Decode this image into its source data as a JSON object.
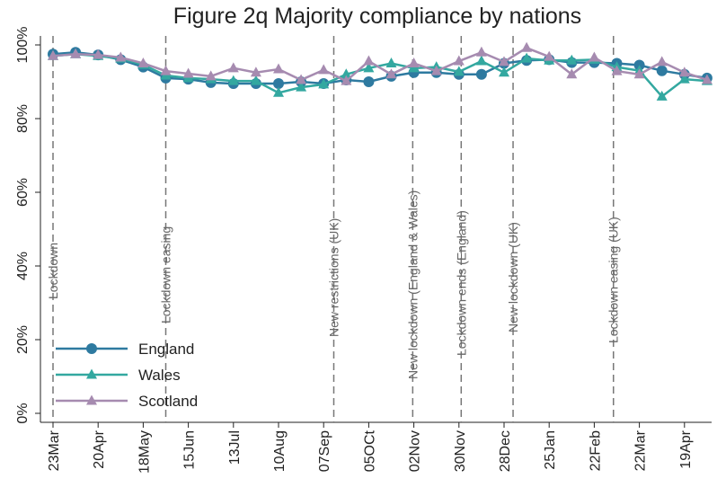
{
  "chart_data": {
    "type": "line",
    "title": "Figure 2q Majority compliance by nations",
    "categories": [
      "23Mar",
      null,
      "20Apr",
      null,
      "18May",
      null,
      "15Jun",
      null,
      "13Jul",
      null,
      "10Aug",
      null,
      "07Sep",
      null,
      "05OCt",
      null,
      "02Nov",
      null,
      "30Nov",
      null,
      "28Dec",
      null,
      "25Jan",
      null,
      "22Feb",
      null,
      "22Mar",
      null,
      "19Apr",
      null
    ],
    "series": [
      {
        "name": "England",
        "color": "#2e7aa0",
        "marker": "circle",
        "values": [
          97.5,
          98,
          97.3,
          96,
          94,
          91,
          90.7,
          89.8,
          89.5,
          89.5,
          89.5,
          90,
          89.5,
          90.5,
          90,
          91.5,
          92.5,
          92.5,
          92,
          92,
          95,
          95.8,
          96,
          95.2,
          95.2,
          95,
          94.5,
          93,
          92,
          91
        ]
      },
      {
        "name": "Wales",
        "color": "#33a8a0",
        "marker": "triangle",
        "values": [
          97,
          97.5,
          97,
          96.3,
          94.6,
          91.7,
          91,
          90.7,
          90.2,
          90.2,
          87,
          88.5,
          89.3,
          92,
          93.7,
          95,
          93.7,
          94,
          92.7,
          95.6,
          92.5,
          96.3,
          95.8,
          95.8,
          96,
          94,
          93,
          86,
          90.7,
          90.2
        ]
      },
      {
        "name": "Scotland",
        "color": "#a68bb0",
        "marker": "triangle",
        "values": [
          97,
          97.5,
          97.3,
          96.6,
          95,
          92.9,
          92.2,
          91.5,
          93.7,
          92.5,
          93.4,
          90.5,
          93.2,
          90.2,
          95.6,
          92,
          95,
          92.9,
          95.6,
          98,
          95.4,
          99.2,
          96.8,
          92,
          96.6,
          92.9,
          92,
          95.4,
          92.5,
          90.5
        ]
      }
    ],
    "ylim": [
      0,
      104
    ],
    "yticks": [
      {
        "value": 0,
        "label": "0%"
      },
      {
        "value": 20,
        "label": "20%"
      },
      {
        "value": 40,
        "label": "40%"
      },
      {
        "value": 60,
        "label": "60%"
      },
      {
        "value": 80,
        "label": "80%"
      },
      {
        "value": 100,
        "label": "100%"
      }
    ],
    "events": [
      {
        "label": "Lockdown",
        "x": 0
      },
      {
        "label": "Lockdown easing",
        "x": 5
      },
      {
        "label": "New restrictions (UK)",
        "x": 12.45
      },
      {
        "label": "New lockdown (England & Wales)",
        "x": 15.95
      },
      {
        "label": "Lockdown ends (England)",
        "x": 18.1
      },
      {
        "label": "New lockdown (UK)",
        "x": 20.4
      },
      {
        "label": "Lockdown easing (UK)",
        "x": 24.85
      }
    ],
    "legend": "lower left"
  }
}
